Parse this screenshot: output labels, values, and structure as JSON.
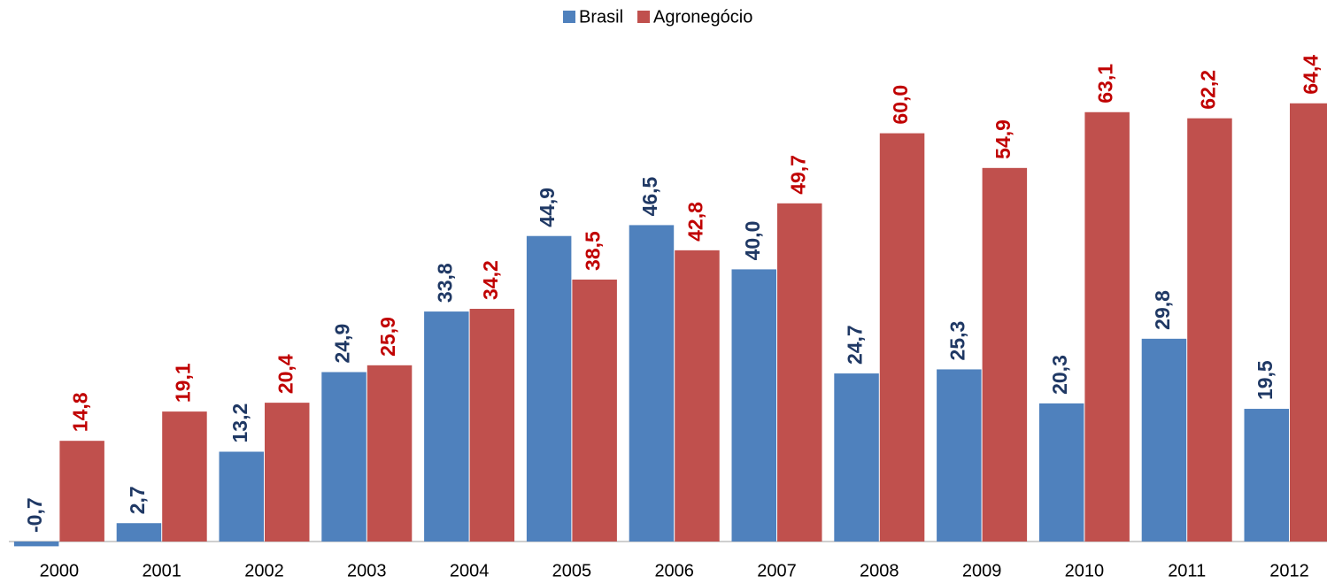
{
  "chart_data": {
    "type": "bar",
    "categories": [
      "2000",
      "2001",
      "2002",
      "2003",
      "2004",
      "2005",
      "2006",
      "2007",
      "2008",
      "2009",
      "2010",
      "2011",
      "2012"
    ],
    "series": [
      {
        "name": "Brasil",
        "color": "#4f81bd",
        "label_color": "#1f3864",
        "values": [
          -0.7,
          2.7,
          13.2,
          24.9,
          33.8,
          44.9,
          46.5,
          40.0,
          24.7,
          25.3,
          20.3,
          29.8,
          19.5
        ],
        "value_labels": [
          "-0,7",
          "2,7",
          "13,2",
          "24,9",
          "33,8",
          "44,9",
          "46,5",
          "40,0",
          "24,7",
          "25,3",
          "20,3",
          "29,8",
          "19,5"
        ]
      },
      {
        "name": "Agronegócio",
        "color": "#c0504d",
        "label_color": "#c00000",
        "values": [
          14.8,
          19.1,
          20.4,
          25.9,
          34.2,
          38.5,
          42.8,
          49.7,
          60.0,
          54.9,
          63.1,
          62.2,
          64.4
        ],
        "value_labels": [
          "14,8",
          "19,1",
          "20,4",
          "25,9",
          "34,2",
          "38,5",
          "42,8",
          "49,7",
          "60,0",
          "54,9",
          "63,1",
          "62,2",
          "64,4"
        ]
      }
    ],
    "legend": "top"
  }
}
